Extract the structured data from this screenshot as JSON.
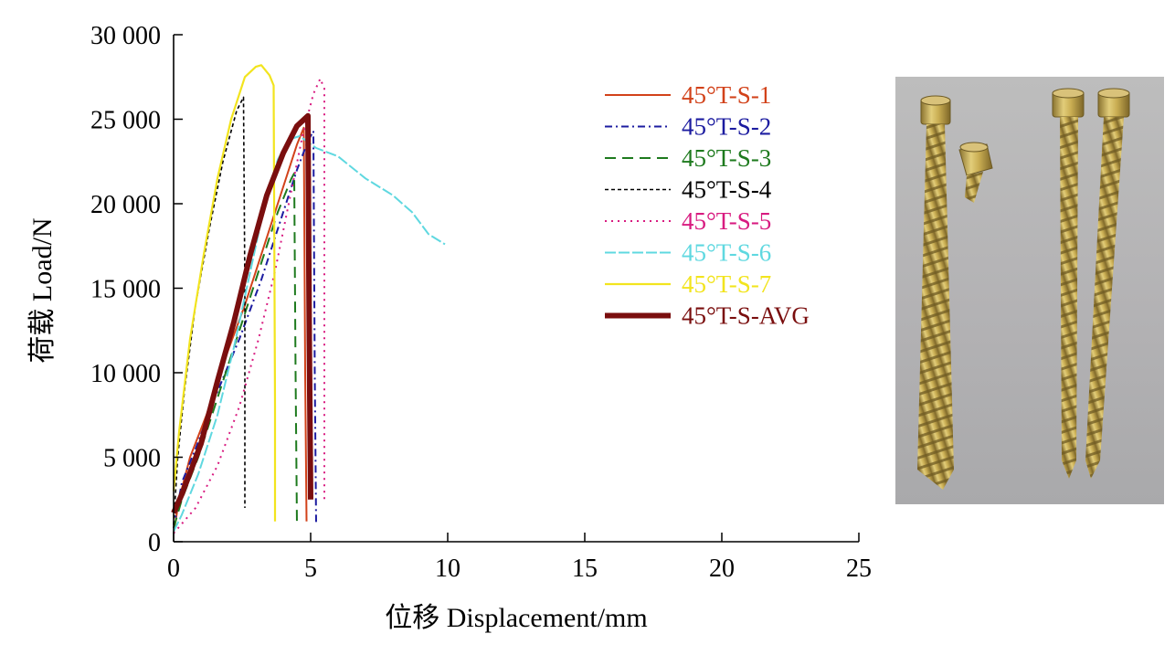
{
  "chart_data": {
    "type": "line",
    "xlabel": "位移  Displacement/mm",
    "ylabel": "荷载  Load/N",
    "xlim": [
      0,
      25
    ],
    "ylim": [
      0,
      30000
    ],
    "xticks": [
      0,
      5,
      10,
      15,
      20,
      25
    ],
    "yticks": [
      0,
      5000,
      10000,
      15000,
      20000,
      25000,
      30000
    ],
    "xtick_labels": [
      "0",
      "5",
      "10",
      "15",
      "20",
      "25"
    ],
    "ytick_labels": [
      "0",
      "5 000",
      "10 000",
      "15 000",
      "20 000",
      "25 000",
      "30 000"
    ],
    "grid": false,
    "legend_position": "top-right",
    "series": [
      {
        "name": "45°T-S-1",
        "color": "#d2421a",
        "dash": "solid",
        "width": 2,
        "points": [
          [
            0,
            500
          ],
          [
            0.2,
            2500
          ],
          [
            0.6,
            5000
          ],
          [
            1.2,
            7500
          ],
          [
            1.8,
            10500
          ],
          [
            2.6,
            14000
          ],
          [
            3.3,
            17500
          ],
          [
            4.0,
            21000
          ],
          [
            4.5,
            23500
          ],
          [
            4.75,
            24500
          ],
          [
            4.8,
            10000
          ],
          [
            4.85,
            1200
          ]
        ]
      },
      {
        "name": "45°T-S-2",
        "color": "#1c1ca0",
        "dash": "8 4 2 4",
        "width": 2,
        "points": [
          [
            0,
            800
          ],
          [
            0.3,
            3500
          ],
          [
            0.8,
            5500
          ],
          [
            1.5,
            8500
          ],
          [
            2.4,
            12000
          ],
          [
            3.2,
            15500
          ],
          [
            3.9,
            19000
          ],
          [
            4.5,
            22000
          ],
          [
            4.9,
            23700
          ],
          [
            5.1,
            24300
          ],
          [
            5.15,
            10000
          ],
          [
            5.2,
            1000
          ]
        ]
      },
      {
        "name": "45°T-S-3",
        "color": "#1e7a1e",
        "dash": "12 7",
        "width": 2,
        "points": [
          [
            0,
            800
          ],
          [
            0.3,
            2500
          ],
          [
            0.9,
            5000
          ],
          [
            1.6,
            8500
          ],
          [
            2.4,
            12500
          ],
          [
            3.2,
            16500
          ],
          [
            3.8,
            19500
          ],
          [
            4.3,
            21500
          ],
          [
            4.4,
            21800
          ],
          [
            4.45,
            10000
          ],
          [
            4.5,
            1000
          ]
        ]
      },
      {
        "name": "45°T-S-4",
        "color": "#000000",
        "dash": "4 3",
        "width": 1.6,
        "points": [
          [
            0,
            1000
          ],
          [
            0.15,
            5000
          ],
          [
            0.4,
            9000
          ],
          [
            0.8,
            14000
          ],
          [
            1.3,
            18500
          ],
          [
            1.8,
            22500
          ],
          [
            2.3,
            25500
          ],
          [
            2.55,
            26300
          ],
          [
            2.6,
            15000
          ],
          [
            2.6,
            2000
          ]
        ]
      },
      {
        "name": "45°T-S-5",
        "color": "#d81b80",
        "dash": "2 5",
        "width": 2,
        "points": [
          [
            0,
            500
          ],
          [
            0.8,
            2000
          ],
          [
            1.6,
            4500
          ],
          [
            2.4,
            8000
          ],
          [
            3.1,
            12000
          ],
          [
            3.7,
            16000
          ],
          [
            4.2,
            20000
          ],
          [
            4.7,
            24000
          ],
          [
            5.1,
            26500
          ],
          [
            5.35,
            27400
          ],
          [
            5.5,
            26800
          ],
          [
            5.5,
            2500
          ]
        ]
      },
      {
        "name": "45°T-S-6",
        "color": "#5fd8e0",
        "dash": "12 3",
        "width": 2,
        "points": [
          [
            0,
            600
          ],
          [
            0.3,
            1600
          ],
          [
            0.9,
            4000
          ],
          [
            1.6,
            7500
          ],
          [
            2.2,
            11500
          ],
          [
            2.8,
            16000
          ],
          [
            3.3,
            19800
          ],
          [
            3.8,
            22600
          ],
          [
            4.2,
            23800
          ],
          [
            4.6,
            24000
          ],
          [
            5.2,
            23300
          ],
          [
            6.0,
            22800
          ],
          [
            7.0,
            21500
          ],
          [
            8.0,
            20500
          ],
          [
            8.7,
            19500
          ],
          [
            9.3,
            18200
          ],
          [
            9.9,
            17600
          ]
        ]
      },
      {
        "name": "45°T-S-7",
        "color": "#f2e41e",
        "dash": "solid",
        "width": 2.2,
        "points": [
          [
            0,
            3000
          ],
          [
            0.2,
            6500
          ],
          [
            0.6,
            12000
          ],
          [
            1.1,
            17000
          ],
          [
            1.6,
            21500
          ],
          [
            2.1,
            25000
          ],
          [
            2.6,
            27500
          ],
          [
            3.0,
            28100
          ],
          [
            3.2,
            28200
          ],
          [
            3.5,
            27600
          ],
          [
            3.65,
            27000
          ],
          [
            3.7,
            8000
          ],
          [
            3.7,
            1200
          ]
        ]
      },
      {
        "name": "45°T-S-AVG",
        "color": "#7a0e0e",
        "dash": "solid",
        "width": 6,
        "points": [
          [
            0,
            1700
          ],
          [
            0.3,
            2800
          ],
          [
            1.0,
            5800
          ],
          [
            1.6,
            9500
          ],
          [
            2.2,
            13000
          ],
          [
            2.8,
            17000
          ],
          [
            3.4,
            20500
          ],
          [
            4.0,
            23000
          ],
          [
            4.5,
            24600
          ],
          [
            4.9,
            25200
          ],
          [
            4.95,
            12000
          ],
          [
            5.0,
            2500
          ]
        ]
      }
    ]
  }
}
